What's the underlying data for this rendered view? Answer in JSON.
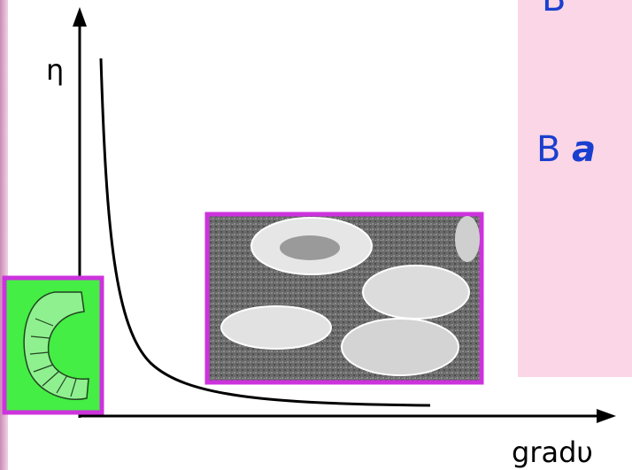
{
  "labels": {
    "y_axis": "η",
    "x_axis": "gradυ"
  },
  "panel": {
    "line1": "В",
    "line2_prefix": "В",
    "line2_emph": "а"
  }
}
